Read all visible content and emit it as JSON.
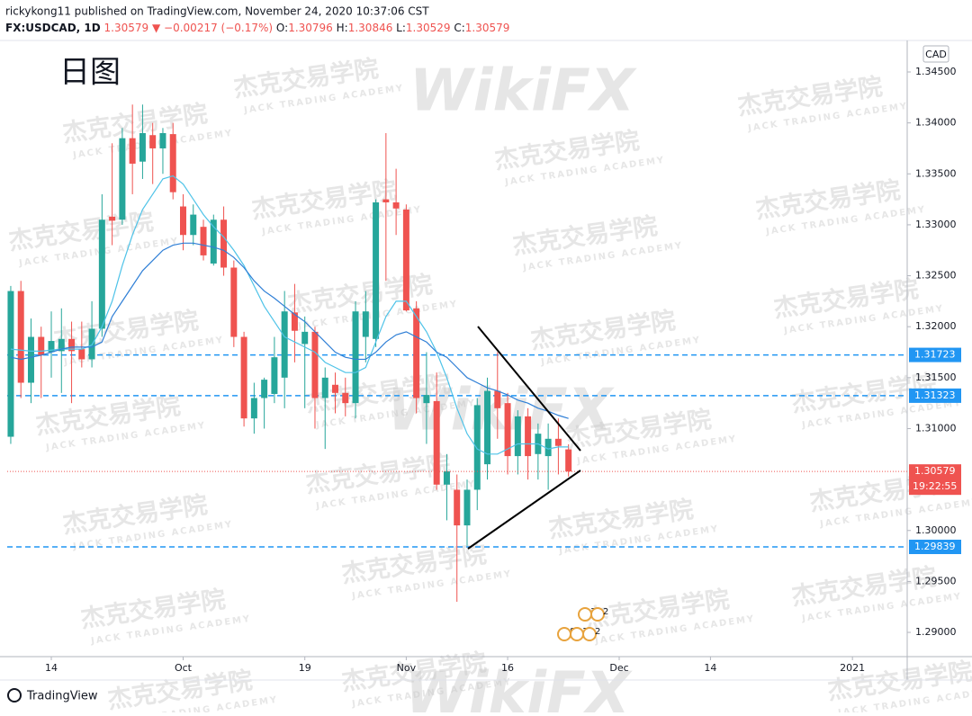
{
  "header": {
    "publisher_line": "rickykong11 published on TradingView.com, November 24, 2020 10:37:06 CST",
    "symbol": "FX:USDCAD, 1D",
    "last": "1.30579",
    "arrow": "▼",
    "change": "−0.00217 (−0.17%)",
    "ohlc": [
      {
        "label": "O:",
        "value": "1.30796"
      },
      {
        "label": "H:",
        "value": "1.30846"
      },
      {
        "label": "L:",
        "value": "1.30529"
      },
      {
        "label": "C:",
        "value": "1.30579"
      }
    ]
  },
  "watermark": {
    "name": "杰克交易学院",
    "sub": "JACK TRADING ACADEMY",
    "brand": "WikiFX"
  },
  "footer": "TradingView",
  "chart_data": {
    "type": "candlestick",
    "annotation": "日图",
    "currency": "CAD",
    "xlim": [
      -0.35,
      88.4
    ],
    "xticks": [
      {
        "value": 4,
        "label": "14"
      },
      {
        "value": 17,
        "label": "Oct"
      },
      {
        "value": 29,
        "label": "19"
      },
      {
        "value": 39,
        "label": "Nov"
      },
      {
        "value": 49,
        "label": "16"
      },
      {
        "value": 60,
        "label": "Dec"
      },
      {
        "value": 69,
        "label": "14"
      },
      {
        "value": 83,
        "label": "2021"
      }
    ],
    "ylim": [
      1.28762,
      1.34809
    ],
    "yticks": [
      {
        "value": 1.29,
        "label": "1.29000"
      },
      {
        "value": 1.295,
        "label": "1.29500"
      },
      {
        "value": 1.3,
        "label": "1.30000"
      },
      {
        "value": 1.305,
        "label": "1.30500"
      },
      {
        "value": 1.31,
        "label": "1.31000"
      },
      {
        "value": 1.315,
        "label": "1.31500"
      },
      {
        "value": 1.32,
        "label": "1.32000"
      },
      {
        "value": 1.325,
        "label": "1.32500"
      },
      {
        "value": 1.33,
        "label": "1.33000"
      },
      {
        "value": 1.335,
        "label": "1.33500"
      },
      {
        "value": 1.34,
        "label": "1.34000"
      },
      {
        "value": 1.345,
        "label": "1.34500"
      }
    ],
    "open": [
      1.3092,
      1.3235,
      1.3145,
      1.319,
      1.3175,
      1.3176,
      1.3188,
      1.3178,
      1.3168,
      1.3198,
      1.3308,
      1.3305,
      1.3385,
      1.3362,
      1.3388,
      1.3375,
      1.3389,
      1.3318,
      1.329,
      1.3298,
      1.3262,
      1.3305,
      1.3258,
      1.319,
      1.311,
      1.313,
      1.3134,
      1.315,
      1.3214,
      1.3183,
      1.3195,
      1.313,
      1.3143,
      1.3135,
      1.3125,
      1.319,
      1.3188,
      1.3325,
      1.3322,
      1.3315,
      1.3218,
      1.3125,
      1.3127,
      1.3045,
      1.304,
      1.3005,
      1.304,
      1.3065,
      1.3137,
      1.3125,
      1.3073,
      1.3112,
      1.3075,
      1.3073,
      1.309,
      1.30796
    ],
    "high": [
      1.324,
      1.3245,
      1.3208,
      1.32,
      1.3215,
      1.3218,
      1.3205,
      1.3205,
      1.3225,
      1.333,
      1.338,
      1.3395,
      1.3418,
      1.3418,
      1.34,
      1.3395,
      1.34,
      1.333,
      1.332,
      1.3305,
      1.331,
      1.3318,
      1.3265,
      1.3195,
      1.3145,
      1.315,
      1.319,
      1.3235,
      1.3242,
      1.321,
      1.32,
      1.316,
      1.3155,
      1.315,
      1.3225,
      1.3235,
      1.3325,
      1.339,
      1.3355,
      1.332,
      1.3225,
      1.3175,
      1.3155,
      1.3075,
      1.3055,
      1.305,
      1.313,
      1.315,
      1.3175,
      1.3135,
      1.3118,
      1.312,
      1.3105,
      1.3105,
      1.311,
      1.30846
    ],
    "low": [
      1.3085,
      1.313,
      1.3125,
      1.313,
      1.315,
      1.3135,
      1.3125,
      1.316,
      1.316,
      1.319,
      1.328,
      1.33,
      1.333,
      1.3345,
      1.334,
      1.335,
      1.3325,
      1.3275,
      1.328,
      1.3265,
      1.326,
      1.325,
      1.318,
      1.3102,
      1.3095,
      1.31,
      1.3125,
      1.312,
      1.3165,
      1.312,
      1.31,
      1.308,
      1.3115,
      1.3112,
      1.311,
      1.3165,
      1.318,
      1.3245,
      1.329,
      1.3215,
      1.3115,
      1.3085,
      1.304,
      1.301,
      1.293,
      1.2985,
      1.302,
      1.305,
      1.309,
      1.3055,
      1.3055,
      1.305,
      1.305,
      1.304,
      1.3055,
      1.30529
    ],
    "close": [
      1.3235,
      1.3145,
      1.319,
      1.3172,
      1.3186,
      1.3188,
      1.3176,
      1.3168,
      1.3198,
      1.3305,
      1.3304,
      1.3385,
      1.336,
      1.339,
      1.3375,
      1.339,
      1.3332,
      1.329,
      1.331,
      1.327,
      1.3305,
      1.3258,
      1.319,
      1.311,
      1.313,
      1.3148,
      1.317,
      1.3215,
      1.3196,
      1.3195,
      1.313,
      1.315,
      1.3135,
      1.3125,
      1.3215,
      1.3215,
      1.3322,
      1.3322,
      1.3316,
      1.3216,
      1.313,
      1.3133,
      1.3045,
      1.3058,
      1.3005,
      1.304,
      1.3123,
      1.3137,
      1.312,
      1.3073,
      1.3112,
      1.3073,
      1.3095,
      1.309,
      1.3083,
      1.30579
    ],
    "up_color": "#26a69a",
    "down_color": "#ef5350",
    "lines": [
      {
        "color": "#4fc3e8",
        "values": [
          1.3178,
          1.3177,
          1.3176,
          1.3176,
          1.3177,
          1.3178,
          1.3178,
          1.3178,
          1.3182,
          1.32,
          1.3225,
          1.326,
          1.329,
          1.3315,
          1.333,
          1.3345,
          1.3348,
          1.334,
          1.3325,
          1.331,
          1.3298,
          1.3288,
          1.3275,
          1.326,
          1.324,
          1.322,
          1.3205,
          1.319,
          1.3185,
          1.318,
          1.3175,
          1.3165,
          1.316,
          1.3155,
          1.3155,
          1.316,
          1.3185,
          1.321,
          1.3225,
          1.3225,
          1.321,
          1.3195,
          1.3175,
          1.315,
          1.312,
          1.3095,
          1.308,
          1.3075,
          1.3075,
          1.308,
          1.3085,
          1.3085,
          1.3085,
          1.308,
          1.3082,
          1.3082
        ]
      },
      {
        "color": "#2f7fd6",
        "values": [
          1.317,
          1.3168,
          1.317,
          1.3172,
          1.3175,
          1.3178,
          1.318,
          1.318,
          1.318,
          1.3185,
          1.321,
          1.3225,
          1.324,
          1.3255,
          1.3265,
          1.3275,
          1.328,
          1.3282,
          1.3282,
          1.328,
          1.3278,
          1.3275,
          1.3268,
          1.3258,
          1.3245,
          1.3235,
          1.3228,
          1.322,
          1.3212,
          1.3205,
          1.3195,
          1.3185,
          1.3175,
          1.317,
          1.3168,
          1.3168,
          1.3175,
          1.3185,
          1.3192,
          1.3195,
          1.319,
          1.3185,
          1.3175,
          1.317,
          1.316,
          1.315,
          1.3145,
          1.314,
          1.3137,
          1.3133,
          1.3128,
          1.3125,
          1.312,
          1.3117,
          1.3113,
          1.311
        ]
      }
    ],
    "levels": [
      1.31723,
      1.31323,
      1.29839
    ],
    "level_color": "#2196f3",
    "last_price": 1.30579,
    "countdown": "19:22:55",
    "events": [
      [
        "3",
        "2"
      ],
      [
        "8",
        "19",
        "2"
      ]
    ]
  }
}
